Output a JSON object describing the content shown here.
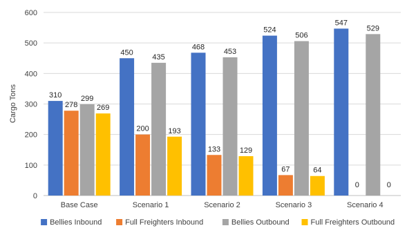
{
  "chart_data": {
    "type": "bar",
    "title": "",
    "xlabel": "",
    "ylabel": "Cargo Tons",
    "ylim": [
      0,
      600
    ],
    "yticks": [
      0,
      100,
      200,
      300,
      400,
      500,
      600
    ],
    "grid": true,
    "legend_position": "bottom",
    "categories": [
      "Base Case",
      "Scenario 1",
      "Scenario 2",
      "Scenario 3",
      "Scenario 4"
    ],
    "series": [
      {
        "name": "Bellies Inbound",
        "color": "#4472c4",
        "values": [
          310,
          450,
          468,
          524,
          547
        ]
      },
      {
        "name": "Full Freighters Inbound",
        "color": "#ed7d31",
        "values": [
          278,
          200,
          133,
          67,
          0
        ]
      },
      {
        "name": "Bellies Outbound",
        "color": "#a5a5a5",
        "values": [
          299,
          435,
          453,
          506,
          529
        ]
      },
      {
        "name": "Full Freighters Outbound",
        "color": "#ffc000",
        "values": [
          269,
          193,
          129,
          64,
          0
        ]
      }
    ]
  }
}
